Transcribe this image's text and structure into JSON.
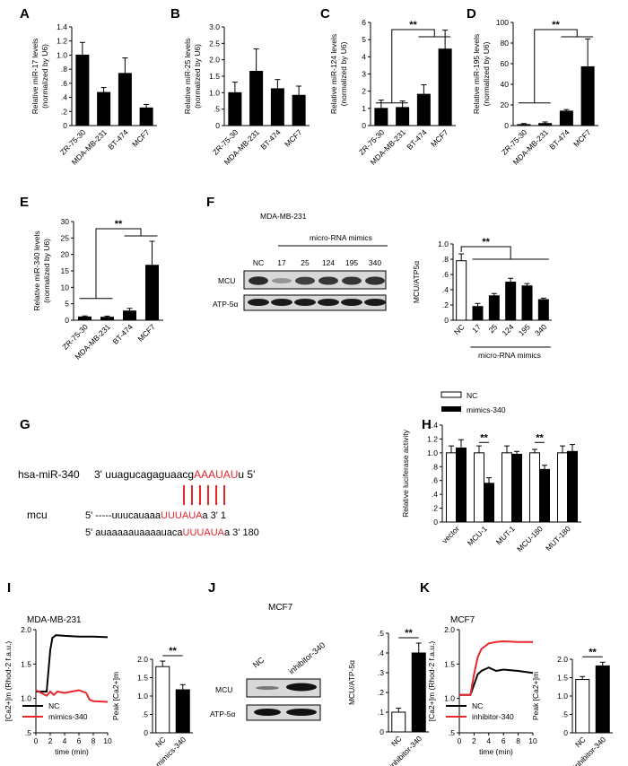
{
  "panel_letters": [
    "A",
    "B",
    "C",
    "D",
    "E",
    "F",
    "G",
    "H",
    "I",
    "J",
    "K"
  ],
  "colors": {
    "bar": "#000000",
    "open": "#ffffff",
    "red": "#e8262c",
    "blot_bg": "#d8d8d8",
    "band": "#1a1a1a"
  },
  "chart_data": [
    {
      "id": "A",
      "type": "bar",
      "ylabel": "Relative miR-17 levels",
      "ylabel2": "(normalized by U6)",
      "categories": [
        "ZR-75-30",
        "MDA-MB-231",
        "BT-474",
        "MCF7"
      ],
      "values": [
        1.0,
        0.47,
        0.74,
        0.25
      ],
      "errors": [
        0.18,
        0.07,
        0.22,
        0.05
      ],
      "ylim": [
        0,
        1.4
      ],
      "yticks": [
        "0",
        ".2",
        ".4",
        ".6",
        ".8",
        "1.0",
        "1.2",
        "1.4"
      ],
      "sig": []
    },
    {
      "id": "B",
      "type": "bar",
      "ylabel": "Relative miR-25 levels",
      "ylabel2": "(normalized by U6)",
      "categories": [
        "ZR-75-30",
        "MDA-MB-231",
        "BT-474",
        "MCF7"
      ],
      "values": [
        1.0,
        1.65,
        1.12,
        0.92
      ],
      "errors": [
        0.32,
        0.68,
        0.28,
        0.28
      ],
      "ylim": [
        0,
        3.0
      ],
      "yticks": [
        "0",
        ".5",
        "1.0",
        "1.5",
        "2.0",
        "2.5",
        "3.0"
      ],
      "sig": []
    },
    {
      "id": "C",
      "type": "bar",
      "ylabel": "Relative miR-124 levels",
      "ylabel2": "(normalized by U6)",
      "categories": [
        "ZR-75-30",
        "MDA-MB-231",
        "BT-474",
        "MCF7"
      ],
      "values": [
        1.0,
        1.05,
        1.82,
        4.45
      ],
      "errors": [
        0.48,
        0.38,
        0.55,
        1.1
      ],
      "ylim": [
        0,
        6
      ],
      "yticks": [
        "0",
        "1",
        "2",
        "3",
        "4",
        "5",
        "6"
      ],
      "sig": [
        "**"
      ]
    },
    {
      "id": "D",
      "type": "bar",
      "ylabel": "Relative miR-195 levels",
      "ylabel2": "(normalized by U6)",
      "categories": [
        "ZR-75-30",
        "MDA-MB-231",
        "BT-474",
        "MCF7"
      ],
      "values": [
        1.0,
        2.0,
        14.0,
        57.0
      ],
      "errors": [
        1.0,
        1.5,
        1.5,
        27.0
      ],
      "ylim": [
        0,
        100
      ],
      "yticks": [
        "0",
        "20",
        "40",
        "60",
        "80",
        "100"
      ],
      "sig": [
        "**"
      ]
    },
    {
      "id": "E",
      "type": "bar",
      "ylabel": "Relative miR-340 levels",
      "ylabel2": "(normalized by U6)",
      "categories": [
        "ZR-75-30",
        "MDA-MB-231",
        "BT-474",
        "MCF7"
      ],
      "values": [
        1.0,
        0.9,
        2.8,
        16.7
      ],
      "errors": [
        0.3,
        0.35,
        0.8,
        7.3
      ],
      "ylim": [
        0,
        30
      ],
      "yticks": [
        "0",
        "5",
        "10",
        "15",
        "20",
        "25",
        "30"
      ],
      "sig": [
        "**"
      ]
    },
    {
      "id": "F",
      "type": "bar",
      "ylabel": "MCU/ATP5α",
      "categories": [
        "NC",
        "17",
        "25",
        "124",
        "195",
        "340"
      ],
      "values": [
        0.78,
        0.18,
        0.32,
        0.5,
        0.45,
        0.27
      ],
      "errors": [
        0.09,
        0.04,
        0.03,
        0.05,
        0.03,
        0.02
      ],
      "ylim": [
        0,
        1.0
      ],
      "yticks": [
        "0",
        ".2",
        ".4",
        ".6",
        ".8",
        "1.0"
      ],
      "sig": [
        "**"
      ],
      "xgroup": "micro-RNA mimics",
      "open_first": true
    },
    {
      "id": "H",
      "type": "grouped_bar",
      "ylabel": "Relative luciferase activity",
      "categories": [
        "vector",
        "MCU-1",
        "MUT-1",
        "MCU-180",
        "MUT-180"
      ],
      "series": [
        {
          "name": "NC",
          "values": [
            1.0,
            1.0,
            1.0,
            1.0,
            1.0
          ],
          "errors": [
            0.1,
            0.1,
            0.1,
            0.05,
            0.1
          ]
        },
        {
          "name": "mimics-340",
          "values": [
            1.07,
            0.56,
            0.98,
            0.76,
            1.02
          ],
          "errors": [
            0.12,
            0.08,
            0.04,
            0.06,
            0.1
          ]
        }
      ],
      "ylim": [
        0,
        1.4
      ],
      "yticks": [
        "0",
        ".2",
        ".4",
        ".6",
        ".8",
        "1.0",
        "1.2",
        "1.4"
      ],
      "sig": [
        "**",
        "**"
      ]
    },
    {
      "id": "I_line",
      "type": "line",
      "title": "MDA-MB-231",
      "ylabel": "[Ca2+]m (Rhod-2 f.a.u.)",
      "xlabel": "time (min)",
      "xlim": [
        0,
        10
      ],
      "ylim": [
        0.5,
        2.0
      ],
      "xticks": [
        "0",
        "2",
        "4",
        "6",
        "8",
        "10"
      ],
      "yticks": [
        ".5",
        "1.0",
        "1.5",
        "2.0"
      ],
      "series": [
        {
          "name": "NC",
          "color": "#000000",
          "x": [
            0,
            1.5,
            2.0,
            2.3,
            2.8,
            4,
            6,
            8,
            10
          ],
          "y": [
            1.1,
            1.1,
            1.7,
            1.88,
            1.92,
            1.91,
            1.9,
            1.9,
            1.89
          ]
        },
        {
          "name": "mimics-340",
          "color": "#e8262c",
          "x": [
            0,
            1.5,
            2.0,
            2.5,
            3,
            4,
            5,
            6,
            7,
            7.5,
            8,
            10
          ],
          "y": [
            1.12,
            1.04,
            1.1,
            1.05,
            1.1,
            1.08,
            1.1,
            1.12,
            1.08,
            0.98,
            0.96,
            0.95
          ]
        }
      ]
    },
    {
      "id": "I_bar",
      "type": "bar",
      "ylabel": "Peak [Ca2+]m",
      "categories": [
        "NC",
        "mimics-340"
      ],
      "values": [
        1.8,
        1.17
      ],
      "errors": [
        0.15,
        0.14
      ],
      "ylim": [
        0,
        2.0
      ],
      "yticks": [
        "0",
        ".5",
        "1.0",
        "1.5",
        "2.0"
      ],
      "sig": [
        "**"
      ],
      "open_first": true
    },
    {
      "id": "J_bar",
      "type": "bar",
      "ylabel": "MCU/ATP-5α",
      "categories": [
        "NC",
        "inhibitor-340"
      ],
      "values": [
        0.1,
        0.4
      ],
      "errors": [
        0.02,
        0.05
      ],
      "ylim": [
        0,
        0.5
      ],
      "yticks": [
        "0",
        ".1",
        ".2",
        ".3",
        ".4",
        ".5"
      ],
      "sig": [
        "**"
      ],
      "open_first": true
    },
    {
      "id": "K_line",
      "type": "line",
      "title": "MCF7",
      "ylabel": "[Ca2+]m (Rhod-2 f.a.u.)",
      "xlabel": "time (min)",
      "xlim": [
        0,
        10
      ],
      "ylim": [
        0.5,
        2.0
      ],
      "xticks": [
        "0",
        "2",
        "4",
        "6",
        "8",
        "10"
      ],
      "yticks": [
        ".5",
        "1.0",
        "1.5",
        "2.0"
      ],
      "series": [
        {
          "name": "NC",
          "color": "#000000",
          "x": [
            0,
            1.5,
            2.0,
            2.5,
            3,
            4,
            5,
            6,
            8,
            10
          ],
          "y": [
            1.05,
            1.05,
            1.2,
            1.35,
            1.4,
            1.45,
            1.4,
            1.42,
            1.4,
            1.37
          ]
        },
        {
          "name": "inhibitor-340",
          "color": "#e8262c",
          "x": [
            0,
            1.5,
            2.0,
            2.5,
            3,
            4,
            5,
            6,
            8,
            10
          ],
          "y": [
            1.05,
            1.05,
            1.35,
            1.6,
            1.72,
            1.8,
            1.82,
            1.83,
            1.82,
            1.82
          ]
        }
      ]
    },
    {
      "id": "K_bar",
      "type": "bar",
      "ylabel": "Peak [Ca2+]m",
      "categories": [
        "NC",
        "inhibitor-340"
      ],
      "values": [
        1.45,
        1.82
      ],
      "errors": [
        0.08,
        0.1
      ],
      "ylim": [
        0,
        2.0
      ],
      "yticks": [
        "0",
        ".5",
        "1.0",
        "1.5",
        "2.0"
      ],
      "sig": [
        "**"
      ],
      "open_first": true
    }
  ],
  "panelF_blot": {
    "title": "MDA-MB-231",
    "group_label": "micro-RNA mimics",
    "lanes": [
      "NC",
      "17",
      "25",
      "124",
      "195",
      "340"
    ],
    "rows": [
      "MCU",
      "ATP-5α"
    ],
    "mcu_intensity": [
      0.9,
      0.35,
      0.8,
      0.85,
      0.85,
      0.88
    ]
  },
  "panelG": {
    "mir_name": "hsa-miR-340",
    "mir_prefix": "3' uuagucagaguaacg",
    "mir_seed": "AAAUAU",
    "mir_suffix": "u 5'",
    "gene": "mcu",
    "site1_prefix": "5'    -----uuucauaaa",
    "site1_seed": "UUUAUA",
    "site1_suffix": "a 3' 1",
    "site2_prefix": "5' auaaaaauaaaauaca",
    "site2_seed": "UUUAUA",
    "site2_suffix": "a 3' 180"
  },
  "panelH_legend": [
    "NC",
    "mimics-340"
  ],
  "panelJ_blot": {
    "title": "MCF7",
    "lanes": [
      "NC",
      "inhibitor-340"
    ],
    "rows": [
      "MCU",
      "ATP-5α"
    ]
  }
}
